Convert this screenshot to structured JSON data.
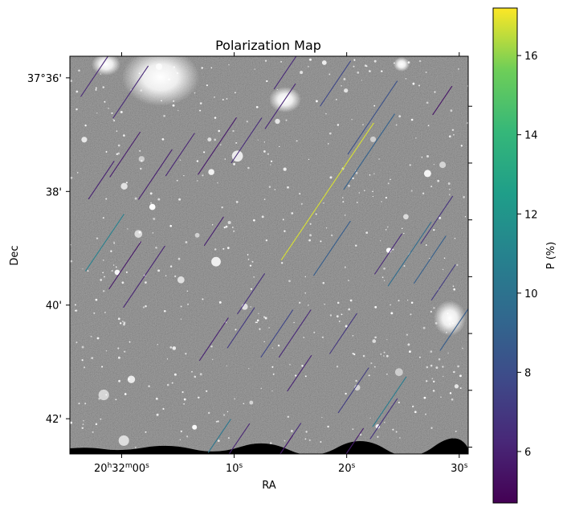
{
  "chart_data": {
    "type": "scatter",
    "title": "Polarization Map",
    "xlabel": "RA",
    "ylabel": "Dec",
    "x_ticks": [
      {
        "ra_s": 0,
        "label_prefix": "20",
        "label_h": "h",
        "label_mid": "32",
        "label_m": "m",
        "label_sec": "00",
        "label_s": "s"
      },
      {
        "ra_s": 10,
        "label": "10",
        "unit": "s"
      },
      {
        "ra_s": 20,
        "label": "20",
        "unit": "s"
      },
      {
        "ra_s": 30,
        "label": "30",
        "unit": "s"
      }
    ],
    "y_ticks": [
      {
        "dec_min": 36,
        "label": "37°36'"
      },
      {
        "dec_min": 38,
        "label": "38'"
      },
      {
        "dec_min": 40,
        "label": "40'"
      },
      {
        "dec_min": 42,
        "label": "42'"
      }
    ],
    "xlim_ra_s": [
      -4.6,
      30.8
    ],
    "ylim_dec_min": [
      42.62,
      35.62
    ],
    "colorbar": {
      "label": "P (%)",
      "colormap": "viridis",
      "range": [
        4.7,
        17.2
      ],
      "ticks": [
        {
          "value": 6,
          "label": "6"
        },
        {
          "value": 8,
          "label": "8"
        },
        {
          "value": 10,
          "label": "10"
        },
        {
          "value": 12,
          "label": "12"
        },
        {
          "value": 14,
          "label": "14"
        },
        {
          "value": 16,
          "label": "16"
        }
      ]
    },
    "vector_angle_deg": 34,
    "vectors": [
      {
        "ra": -2.0,
        "dec": 35.85,
        "len": 1.15,
        "p": 6.2
      },
      {
        "ra": 0.8,
        "dec": 36.25,
        "len": 1.1,
        "p": 6.3
      },
      {
        "ra": -1.8,
        "dec": 37.8,
        "len": 0.8,
        "p": 6.0
      },
      {
        "ra": 0.3,
        "dec": 37.35,
        "len": 0.95,
        "p": 5.8
      },
      {
        "ra": 3.0,
        "dec": 37.7,
        "len": 1.05,
        "p": 5.9
      },
      {
        "ra": 5.2,
        "dec": 37.35,
        "len": 0.9,
        "p": 6.1
      },
      {
        "ra": 8.5,
        "dec": 37.2,
        "len": 1.2,
        "p": 5.7
      },
      {
        "ra": 11.1,
        "dec": 37.1,
        "len": 0.95,
        "p": 6.4
      },
      {
        "ra": 14.9,
        "dec": 35.8,
        "len": 0.95,
        "p": 6.3
      },
      {
        "ra": 19.0,
        "dec": 36.1,
        "len": 0.95,
        "p": 7.7
      },
      {
        "ra": 22.3,
        "dec": 36.7,
        "len": 1.55,
        "p": 8.2
      },
      {
        "ra": 22.0,
        "dec": 37.3,
        "len": 1.6,
        "p": 9.0
      },
      {
        "ra": 28.5,
        "dec": 36.4,
        "len": 0.6,
        "p": 5.5
      },
      {
        "ra": 14.1,
        "dec": 36.5,
        "len": 0.95,
        "p": 6.2
      },
      {
        "ra": 18.3,
        "dec": 38.0,
        "len": 2.9,
        "p": 16.8
      },
      {
        "ra": -1.5,
        "dec": 38.9,
        "len": 1.2,
        "p": 10.8
      },
      {
        "ra": 0.3,
        "dec": 39.3,
        "len": 1.0,
        "p": 5.6
      },
      {
        "ra": 2.0,
        "dec": 39.5,
        "len": 1.3,
        "p": 6.1
      },
      {
        "ra": 8.2,
        "dec": 38.7,
        "len": 0.6,
        "p": 5.9
      },
      {
        "ra": 11.5,
        "dec": 39.8,
        "len": 0.85,
        "p": 6.6
      },
      {
        "ra": 18.7,
        "dec": 39.0,
        "len": 1.15,
        "p": 8.8
      },
      {
        "ra": 23.7,
        "dec": 39.1,
        "len": 0.85,
        "p": 6.3
      },
      {
        "ra": 25.6,
        "dec": 39.1,
        "len": 1.35,
        "p": 9.6
      },
      {
        "ra": 28.0,
        "dec": 38.5,
        "len": 1.0,
        "p": 6.7
      },
      {
        "ra": 27.4,
        "dec": 39.2,
        "len": 1.0,
        "p": 8.9
      },
      {
        "ra": 28.6,
        "dec": 39.6,
        "len": 0.75,
        "p": 7.1
      },
      {
        "ra": 8.2,
        "dec": 40.6,
        "len": 0.9,
        "p": 6.0
      },
      {
        "ra": 13.8,
        "dec": 40.5,
        "len": 1.0,
        "p": 7.6
      },
      {
        "ra": 15.4,
        "dec": 40.5,
        "len": 1.0,
        "p": 6.3
      },
      {
        "ra": 19.7,
        "dec": 40.5,
        "len": 0.85,
        "p": 6.9
      },
      {
        "ra": 30.0,
        "dec": 40.3,
        "len": 1.2,
        "p": 8.8
      },
      {
        "ra": 10.6,
        "dec": 40.4,
        "len": 0.85,
        "p": 7.0
      },
      {
        "ra": 15.8,
        "dec": 41.2,
        "len": 0.75,
        "p": 6.1
      },
      {
        "ra": 20.6,
        "dec": 41.5,
        "len": 0.95,
        "p": 7.2
      },
      {
        "ra": 23.8,
        "dec": 41.7,
        "len": 1.05,
        "p": 10.5
      },
      {
        "ra": 23.3,
        "dec": 42.0,
        "len": 0.85,
        "p": 6.7
      },
      {
        "ra": 8.7,
        "dec": 42.3,
        "len": 0.7,
        "p": 10.2
      },
      {
        "ra": 10.3,
        "dec": 42.4,
        "len": 0.75,
        "p": 6.1
      },
      {
        "ra": 15.0,
        "dec": 42.35,
        "len": 0.65,
        "p": 6.4
      },
      {
        "ra": 14.5,
        "dec": 42.5,
        "len": 0.5,
        "p": 5.7
      },
      {
        "ra": 20.7,
        "dec": 42.4,
        "len": 0.55,
        "p": 5.8
      }
    ]
  }
}
